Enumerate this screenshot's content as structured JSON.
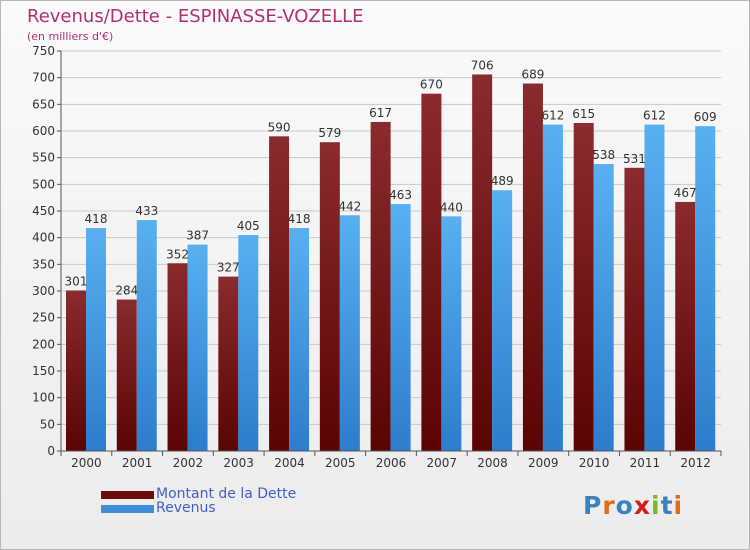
{
  "header": {
    "title": "Revenus/Dette - ESPINASSE-VOZELLE",
    "subtitle": "(en milliers d'€)"
  },
  "legend": {
    "items": [
      {
        "label": "Montant de la Dette",
        "color": "#6b0d0d"
      },
      {
        "label": "Revenus",
        "color": "#3d8fd8"
      }
    ]
  },
  "logo": {
    "text": "Proxiti",
    "letter_colors": [
      "#3a82c4",
      "#e06c1a",
      "#3a82c4",
      "#d21e1e",
      "#7ab828",
      "#3a82c4",
      "#e06c1a"
    ]
  },
  "chart_data": {
    "type": "bar",
    "categories": [
      "2000",
      "2001",
      "2002",
      "2003",
      "2004",
      "2005",
      "2006",
      "2007",
      "2008",
      "2009",
      "2010",
      "2011",
      "2012"
    ],
    "series": [
      {
        "name": "Montant de la Dette",
        "color": "#7a1a1a",
        "values": [
          301,
          284,
          352,
          327,
          590,
          579,
          617,
          670,
          706,
          689,
          615,
          531,
          467
        ]
      },
      {
        "name": "Revenus",
        "color": "#4aa3ea",
        "values": [
          418,
          433,
          387,
          405,
          418,
          442,
          463,
          440,
          489,
          612,
          538,
          612,
          609
        ]
      }
    ],
    "ylim": [
      0,
      750
    ],
    "yticks": [
      0,
      50,
      100,
      150,
      200,
      250,
      300,
      350,
      400,
      450,
      500,
      550,
      600,
      650,
      700,
      750
    ],
    "grid": true,
    "legend_position": "bottom-left"
  }
}
